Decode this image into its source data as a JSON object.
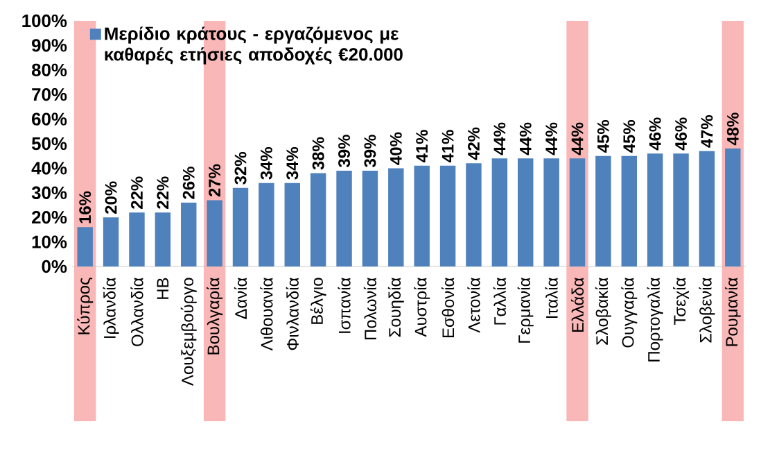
{
  "chart_data": {
    "type": "bar",
    "legend": "top left",
    "categories": [
      "Κύπρος",
      "Ιρλανδία",
      "Ολλανδία",
      "ΗΒ",
      "Λουξεμβούργο",
      "Βουλγαρία",
      "Δανία",
      "Λιθουανία",
      "Φινλανδία",
      "Βέλγιο",
      "Ισπανία",
      "Πολωνία",
      "Σουηδία",
      "Αυστρία",
      "Εσθονία",
      "Λετονία",
      "Γαλλία",
      "Γερμανία",
      "Ιταλία",
      "Ελλάδα",
      "Σλοβακία",
      "Ουγγαρία",
      "Πορτογαλία",
      "Τσεχία",
      "Σλοβενία",
      "Ρουμανία"
    ],
    "series": [
      {
        "name": "Μερίδιο κράτους - εργαζόμενος με καθαρές ετήσιες αποδοχές €20.000",
        "color": "#4f81bd",
        "values": [
          16,
          20,
          22,
          22,
          26,
          27,
          32,
          34,
          34,
          38,
          39,
          39,
          40,
          41,
          41,
          42,
          44,
          44,
          44,
          44,
          45,
          45,
          46,
          46,
          47,
          48
        ],
        "value_labels": [
          "16%",
          "20%",
          "22%",
          "22%",
          "26%",
          "27%",
          "32%",
          "34%",
          "34%",
          "38%",
          "39%",
          "39%",
          "40%",
          "41%",
          "41%",
          "42%",
          "44%",
          "44%",
          "44%",
          "44%",
          "45%",
          "45%",
          "46%",
          "46%",
          "47%",
          "48%"
        ]
      }
    ],
    "ylim": [
      0,
      100
    ],
    "yticks": [
      {
        "value": 0,
        "label": "0%"
      },
      {
        "value": 10,
        "label": "10%"
      },
      {
        "value": 20,
        "label": "20%"
      },
      {
        "value": 30,
        "label": "30%"
      },
      {
        "value": 40,
        "label": "40%"
      },
      {
        "value": 50,
        "label": "50%"
      },
      {
        "value": 60,
        "label": "60%"
      },
      {
        "value": 70,
        "label": "70%"
      },
      {
        "value": 80,
        "label": "80%"
      },
      {
        "value": 90,
        "label": "90%"
      },
      {
        "value": 100,
        "label": "100%"
      }
    ],
    "bands": [
      {
        "axis": "x",
        "from": "Κύπρος",
        "to": "Κύπρος",
        "color": "#f9b7b7"
      },
      {
        "axis": "x",
        "from": "Βουλγαρία",
        "to": "Βουλγαρία",
        "color": "#f9b7b7"
      },
      {
        "axis": "x",
        "from": "Ελλάδα",
        "to": "Ελλάδα",
        "color": "#f9b7b7"
      },
      {
        "axis": "x",
        "from": "Ρουμανία",
        "to": "Ρουμανία",
        "color": "#f9b7b7"
      }
    ]
  }
}
